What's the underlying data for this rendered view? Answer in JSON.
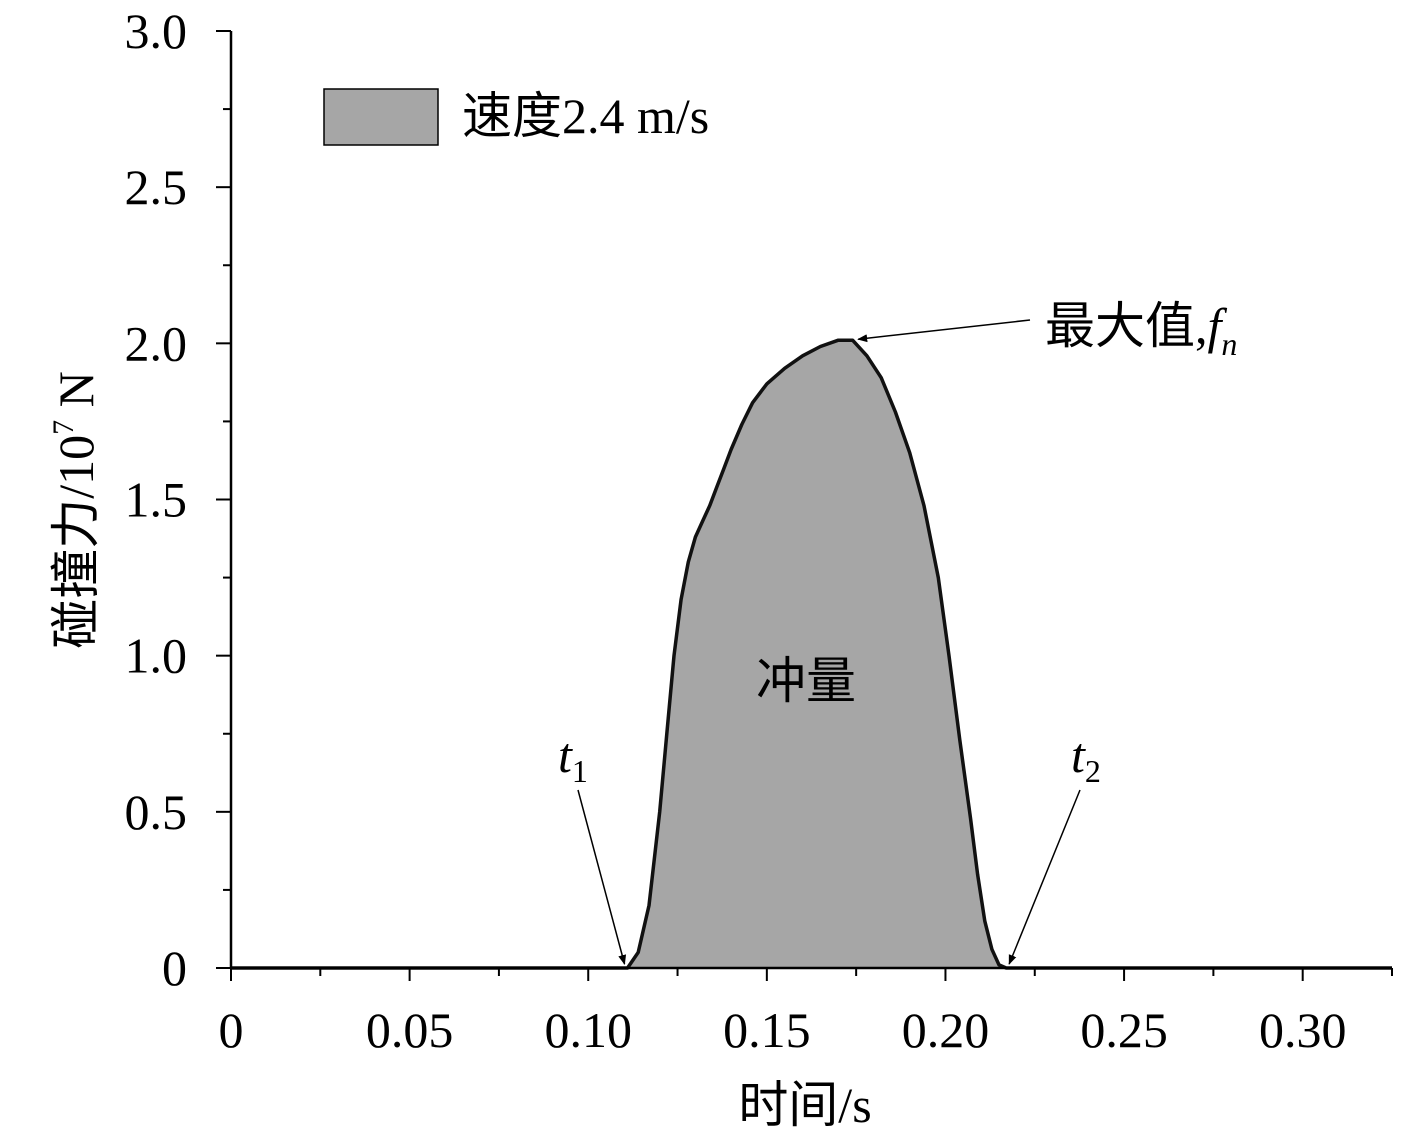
{
  "chart_data": {
    "type": "area",
    "xlabel": "时间/s",
    "ylabel_main": "碰撞力/10",
    "ylabel_exp": "7",
    "ylabel_unit": " N",
    "xlim": [
      0,
      0.325
    ],
    "ylim": [
      0,
      3.0
    ],
    "x_ticks": [
      "0",
      "0.05",
      "0.10",
      "0.15",
      "0.20",
      "0.25",
      "0.30"
    ],
    "x_tick_values": [
      0,
      0.05,
      0.1,
      0.15,
      0.2,
      0.25,
      0.3
    ],
    "y_ticks": [
      "0",
      "0.5",
      "1.0",
      "1.5",
      "2.0",
      "2.5",
      "3.0"
    ],
    "y_tick_values": [
      0,
      0.5,
      1.0,
      1.5,
      2.0,
      2.5,
      3.0
    ],
    "legend": {
      "position": "top-left",
      "entries": [
        {
          "label": "速度2.4 m/s",
          "color": "#a6a6a6"
        }
      ]
    },
    "series": [
      {
        "name": "速度2.4 m/s",
        "fill": "#a6a6a6",
        "stroke": "#111111",
        "x": [
          0.0,
          0.111,
          0.114,
          0.117,
          0.12,
          0.122,
          0.124,
          0.126,
          0.128,
          0.13,
          0.132,
          0.134,
          0.136,
          0.138,
          0.14,
          0.143,
          0.146,
          0.15,
          0.155,
          0.16,
          0.165,
          0.17,
          0.174,
          0.178,
          0.182,
          0.186,
          0.19,
          0.194,
          0.198,
          0.201,
          0.204,
          0.207,
          0.209,
          0.211,
          0.213,
          0.215,
          0.217,
          0.325
        ],
        "y": [
          0.0,
          0.0,
          0.05,
          0.2,
          0.5,
          0.75,
          1.0,
          1.18,
          1.3,
          1.38,
          1.43,
          1.48,
          1.54,
          1.6,
          1.66,
          1.74,
          1.81,
          1.87,
          1.92,
          1.96,
          1.99,
          2.01,
          2.01,
          1.96,
          1.89,
          1.78,
          1.65,
          1.48,
          1.25,
          1.0,
          0.73,
          0.48,
          0.3,
          0.15,
          0.06,
          0.01,
          0.0,
          0.0
        ]
      }
    ],
    "annotations": {
      "peak": {
        "text": "最大值,",
        "symbol": "f",
        "subscript": "n",
        "x": 0.175,
        "y": 2.01
      },
      "impulse": {
        "text": "冲量"
      },
      "t1": {
        "symbol": "t",
        "subscript": "1",
        "x": 0.111,
        "y": 0.0
      },
      "t2": {
        "symbol": "t",
        "subscript": "2",
        "x": 0.217,
        "y": 0.0
      }
    }
  }
}
